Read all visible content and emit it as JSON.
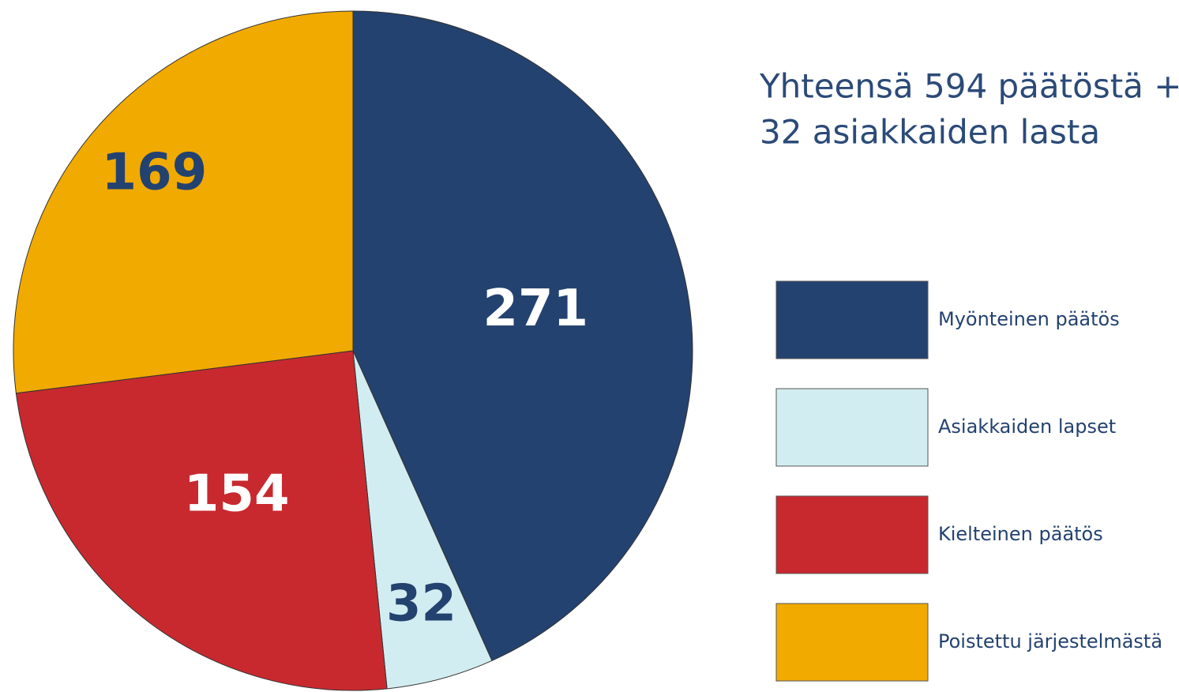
{
  "chart_data": {
    "type": "pie",
    "title": [
      "Yhteensä 594 päätöstä +",
      "32 asiakkaiden lasta"
    ],
    "categories": [
      "Myönteinen päätös",
      "Asiakkaiden lapset",
      "Kielteinen päätös",
      "Poistettu järjestelmästä"
    ],
    "values": [
      271,
      32,
      154,
      169
    ],
    "colors": [
      "#23426f",
      "#d2edf1",
      "#c8292f",
      "#f1aa00"
    ],
    "legend": "right"
  }
}
